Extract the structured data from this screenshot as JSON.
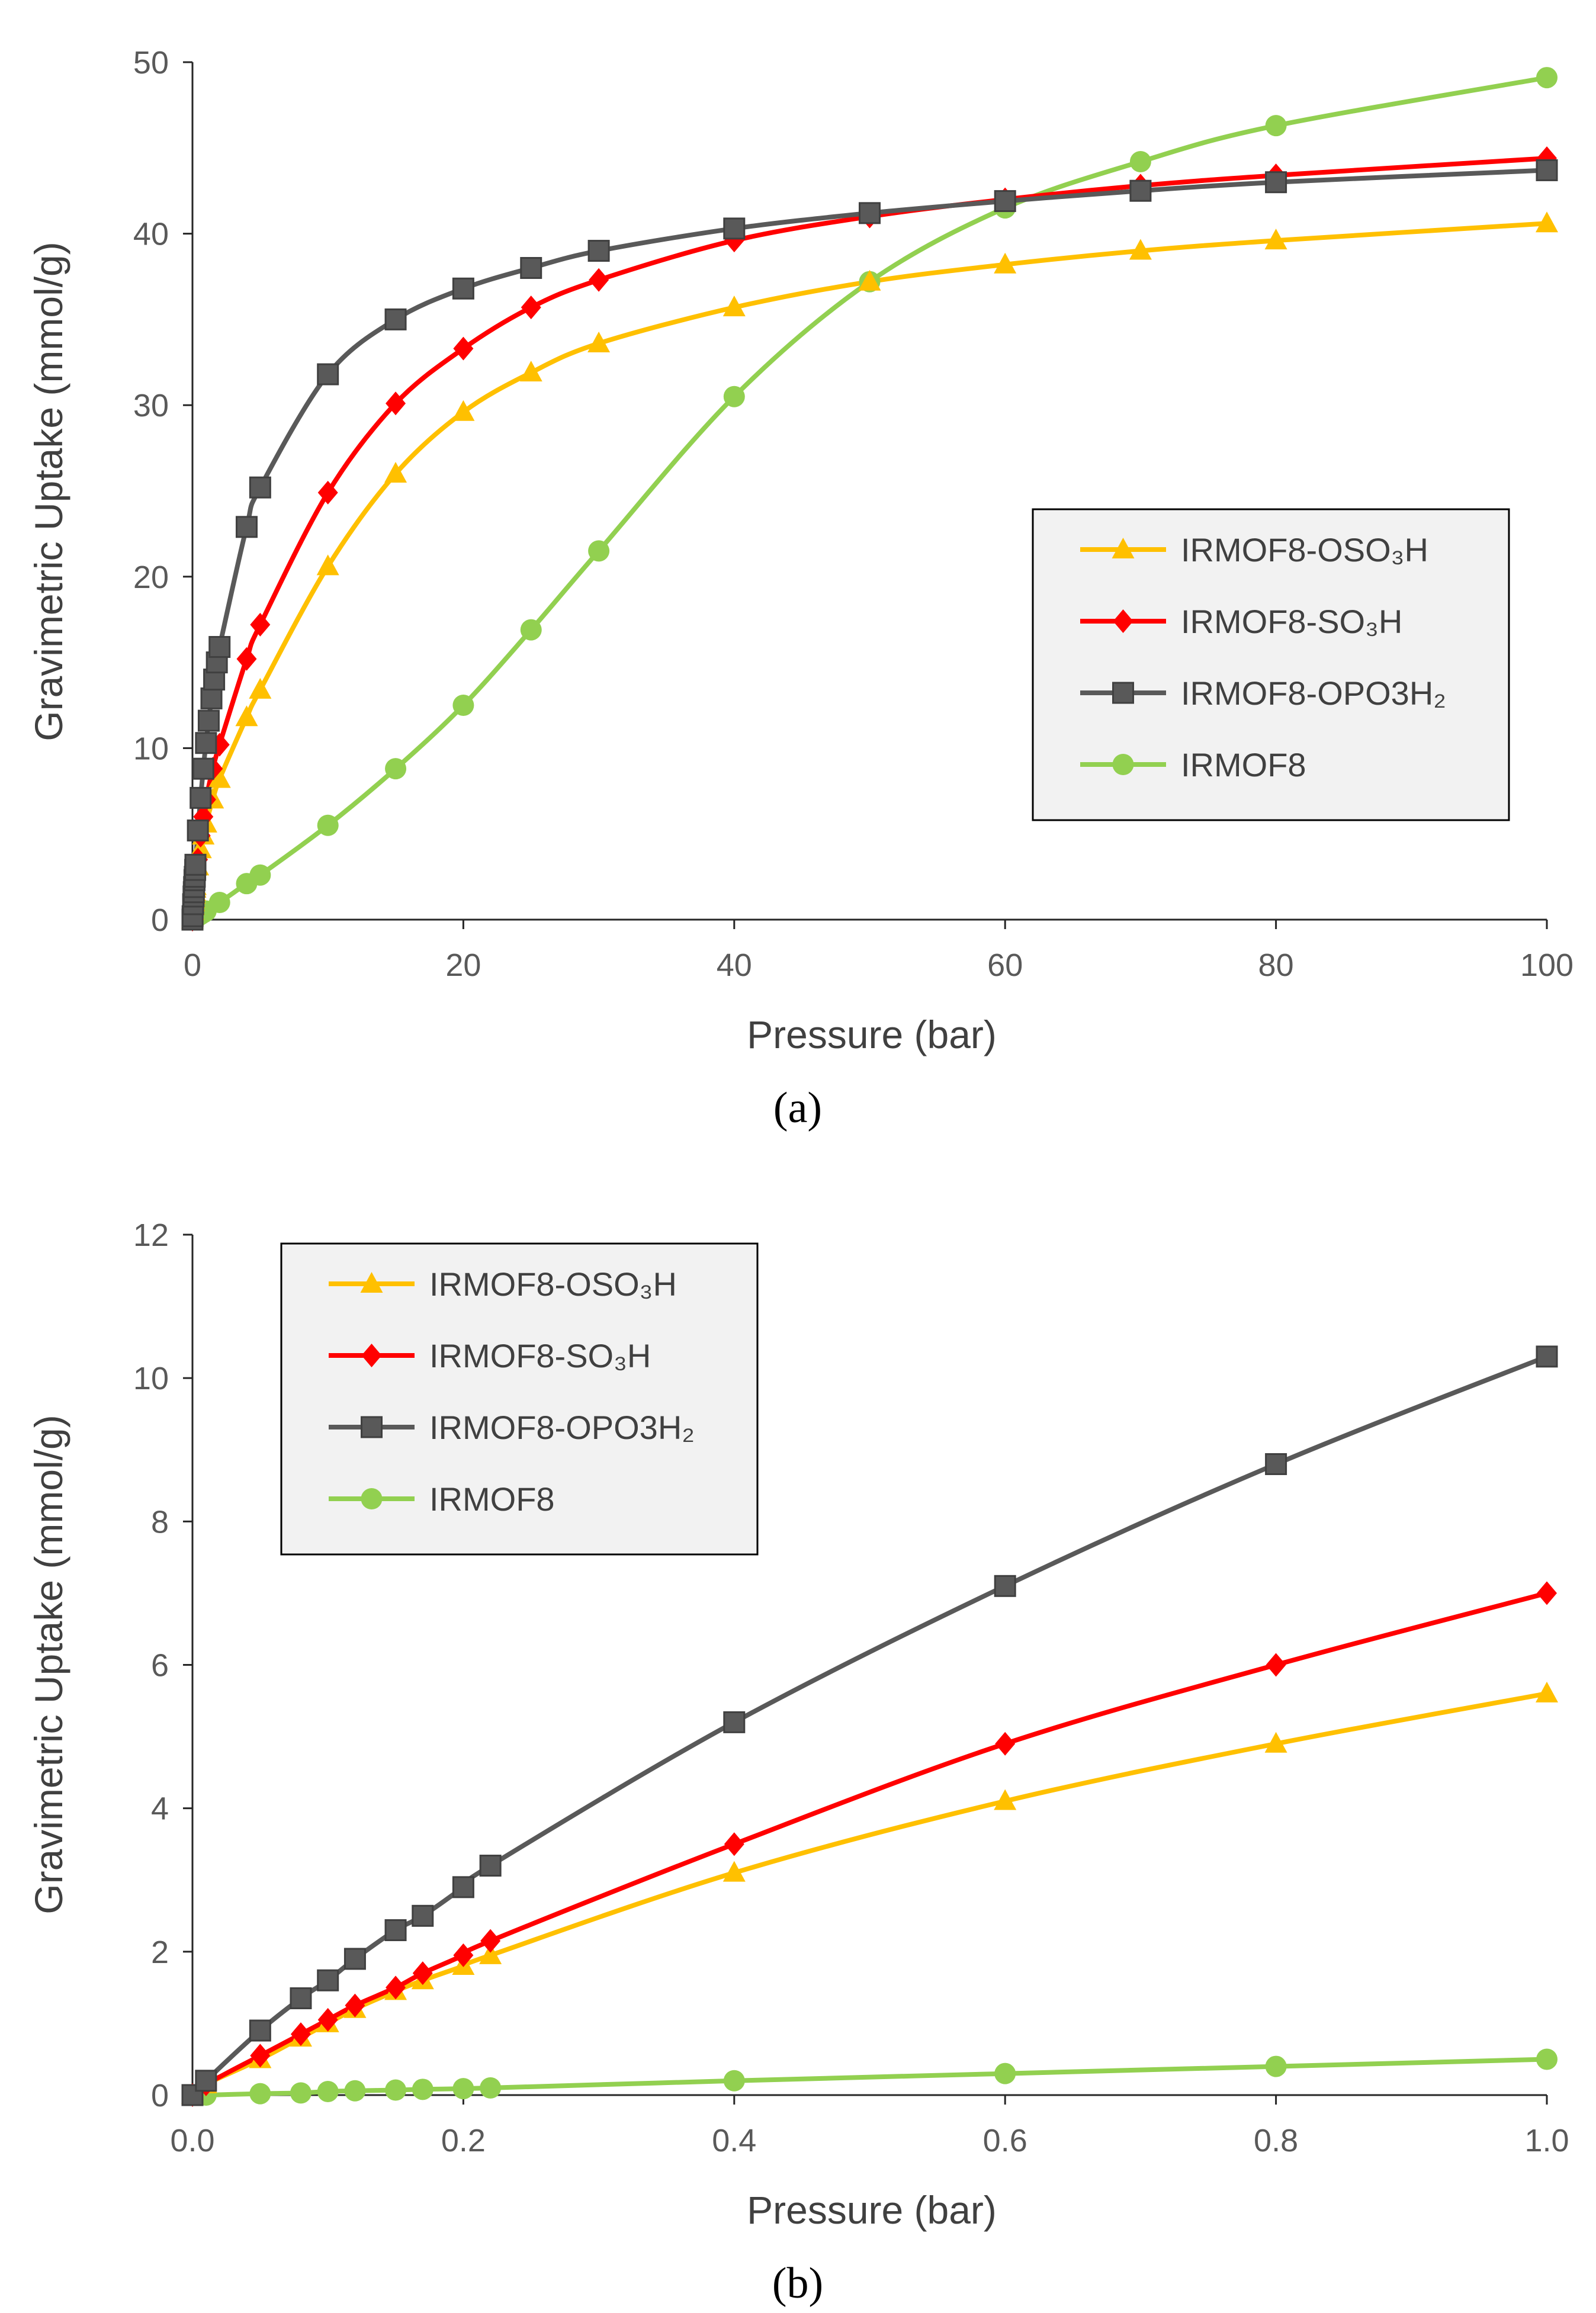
{
  "chart_data": [
    {
      "panel": "a",
      "panel_label": "(a)",
      "type": "line",
      "xlabel": "Pressure (bar)",
      "ylabel": "Gravimetric Uptake (mmol/g)",
      "xlim": [
        0,
        100
      ],
      "ylim": [
        0,
        50
      ],
      "xticks": [
        0,
        20,
        40,
        60,
        80,
        100
      ],
      "yticks": [
        0,
        10,
        20,
        30,
        40,
        50
      ],
      "xtick_labels": [
        "0",
        "20",
        "40",
        "60",
        "80",
        "100"
      ],
      "ytick_labels": [
        "0",
        "10",
        "20",
        "30",
        "40",
        "50"
      ],
      "legend_position": "center-right",
      "series": [
        {
          "name": "IRMOF8-OSO₃H",
          "color": "#ffc000",
          "marker": "triangle",
          "x": [
            0,
            0.01,
            0.05,
            0.08,
            0.1,
            0.12,
            0.15,
            0.17,
            0.2,
            0.22,
            0.4,
            0.6,
            0.8,
            1,
            1.5,
            2,
            4,
            5,
            10,
            15,
            20,
            25,
            30,
            40,
            50,
            60,
            70,
            80,
            100
          ],
          "y": [
            0,
            0.15,
            0.5,
            0.8,
            1.0,
            1.2,
            1.45,
            1.6,
            1.8,
            1.95,
            3.1,
            4.1,
            4.9,
            5.6,
            7.0,
            8.2,
            11.8,
            13.4,
            20.6,
            26.0,
            29.6,
            31.9,
            33.6,
            35.7,
            37.2,
            38.2,
            39.0,
            39.6,
            40.6
          ]
        },
        {
          "name": "IRMOF8-SO₃H",
          "color": "#ff0000",
          "marker": "diamond",
          "x": [
            0,
            0.01,
            0.05,
            0.08,
            0.1,
            0.12,
            0.15,
            0.17,
            0.2,
            0.22,
            0.4,
            0.6,
            0.8,
            1,
            1.5,
            2,
            4,
            5,
            10,
            15,
            20,
            25,
            30,
            40,
            50,
            60,
            70,
            80,
            100
          ],
          "y": [
            0,
            0.15,
            0.55,
            0.85,
            1.05,
            1.25,
            1.5,
            1.7,
            1.95,
            2.15,
            3.5,
            4.9,
            6.0,
            7.0,
            8.8,
            10.2,
            15.2,
            17.2,
            24.9,
            30.1,
            33.3,
            35.7,
            37.3,
            39.6,
            41.0,
            42.0,
            42.8,
            43.4,
            44.4
          ]
        },
        {
          "name": "IRMOF8-OPO3H₂",
          "color": "#595959",
          "marker": "square",
          "x": [
            0,
            0.01,
            0.05,
            0.08,
            0.1,
            0.12,
            0.15,
            0.17,
            0.2,
            0.22,
            0.4,
            0.6,
            0.8,
            1,
            1.2,
            1.4,
            1.6,
            1.8,
            2,
            4,
            5,
            10,
            15,
            20,
            25,
            30,
            40,
            50,
            60,
            70,
            80,
            100
          ],
          "y": [
            0,
            0.2,
            0.9,
            1.35,
            1.6,
            1.9,
            2.3,
            2.5,
            2.9,
            3.2,
            5.2,
            7.1,
            8.8,
            10.3,
            11.6,
            12.9,
            14.0,
            15.0,
            15.9,
            22.9,
            25.2,
            31.8,
            35.0,
            36.8,
            38.0,
            39.0,
            40.3,
            41.2,
            41.9,
            42.5,
            43.0,
            43.7
          ]
        },
        {
          "name": "IRMOF8",
          "color": "#92d050",
          "marker": "circle",
          "x": [
            0,
            0.01,
            0.05,
            0.08,
            0.1,
            0.12,
            0.15,
            0.17,
            0.2,
            0.22,
            0.4,
            0.6,
            0.8,
            1,
            2,
            4,
            5,
            10,
            15,
            20,
            25,
            30,
            40,
            50,
            60,
            70,
            80,
            100
          ],
          "y": [
            0,
            0.0,
            0.02,
            0.03,
            0.05,
            0.06,
            0.07,
            0.08,
            0.09,
            0.1,
            0.2,
            0.3,
            0.4,
            0.5,
            1.0,
            2.1,
            2.6,
            5.5,
            8.8,
            12.5,
            16.9,
            21.5,
            30.5,
            37.2,
            41.5,
            44.2,
            46.3,
            49.1
          ]
        }
      ]
    },
    {
      "panel": "b",
      "panel_label": "(b)",
      "type": "line",
      "xlabel": "Pressure (bar)",
      "ylabel": "Gravimetric Uptake (mmol/g)",
      "xlim": [
        0,
        1
      ],
      "ylim": [
        0,
        12
      ],
      "xticks": [
        0,
        0.2,
        0.4,
        0.6,
        0.8,
        1.0
      ],
      "yticks": [
        0,
        2,
        4,
        6,
        8,
        10,
        12
      ],
      "xtick_labels": [
        "0.0",
        "0.2",
        "0.4",
        "0.6",
        "0.8",
        "1.0"
      ],
      "ytick_labels": [
        "0",
        "2",
        "4",
        "6",
        "8",
        "10",
        "12"
      ],
      "legend_position": "top-left",
      "series": [
        {
          "name": "IRMOF8-OSO₃H",
          "color": "#ffc000",
          "marker": "triangle",
          "x": [
            0,
            0.01,
            0.05,
            0.08,
            0.1,
            0.12,
            0.15,
            0.17,
            0.2,
            0.22,
            0.4,
            0.6,
            0.8,
            1.0
          ],
          "y": [
            0,
            0.15,
            0.5,
            0.8,
            1.0,
            1.2,
            1.45,
            1.6,
            1.8,
            1.95,
            3.1,
            4.1,
            4.9,
            5.6
          ]
        },
        {
          "name": "IRMOF8-SO₃H",
          "color": "#ff0000",
          "marker": "diamond",
          "x": [
            0,
            0.01,
            0.05,
            0.08,
            0.1,
            0.12,
            0.15,
            0.17,
            0.2,
            0.22,
            0.4,
            0.6,
            0.8,
            1.0
          ],
          "y": [
            0,
            0.15,
            0.55,
            0.85,
            1.05,
            1.25,
            1.5,
            1.7,
            1.95,
            2.15,
            3.5,
            4.9,
            6.0,
            7.0
          ]
        },
        {
          "name": "IRMOF8-OPO3H₂",
          "color": "#595959",
          "marker": "square",
          "x": [
            0,
            0.01,
            0.05,
            0.08,
            0.1,
            0.12,
            0.15,
            0.17,
            0.2,
            0.22,
            0.4,
            0.6,
            0.8,
            1.0
          ],
          "y": [
            0,
            0.2,
            0.9,
            1.35,
            1.6,
            1.9,
            2.3,
            2.5,
            2.9,
            3.2,
            5.2,
            7.1,
            8.8,
            10.3
          ]
        },
        {
          "name": "IRMOF8",
          "color": "#92d050",
          "marker": "circle",
          "x": [
            0,
            0.01,
            0.05,
            0.08,
            0.1,
            0.12,
            0.15,
            0.17,
            0.2,
            0.22,
            0.4,
            0.6,
            0.8,
            1.0
          ],
          "y": [
            0,
            0.0,
            0.02,
            0.03,
            0.05,
            0.06,
            0.07,
            0.08,
            0.09,
            0.1,
            0.2,
            0.3,
            0.4,
            0.5
          ]
        }
      ]
    }
  ]
}
